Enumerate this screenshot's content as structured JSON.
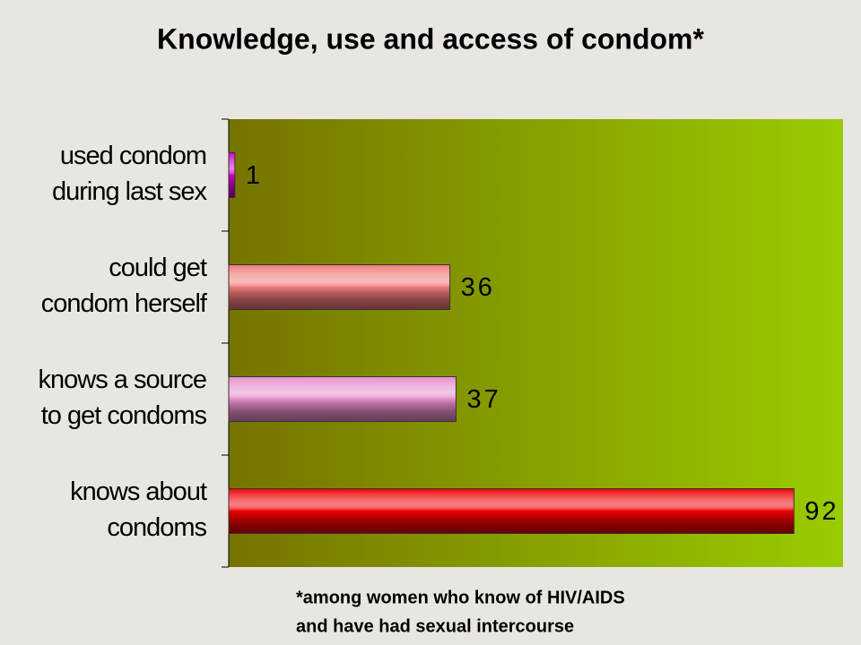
{
  "chart_data": {
    "type": "hbar",
    "title": "Knowledge, use and access of condom*",
    "categories": [
      [
        "used condom",
        "during last sex"
      ],
      [
        "could get",
        "condom herself"
      ],
      [
        "knows a source",
        "to get condoms"
      ],
      [
        "knows about",
        "condoms"
      ]
    ],
    "values": [
      1,
      36,
      37,
      92
    ],
    "colors": [
      "#cc00cc",
      "#f07878",
      "#e58cc8",
      "#ee0000"
    ],
    "xlim": [
      0,
      100
    ],
    "note": [
      "*among women who know of HIV/AIDS",
      "and have had sexual intercourse"
    ]
  }
}
